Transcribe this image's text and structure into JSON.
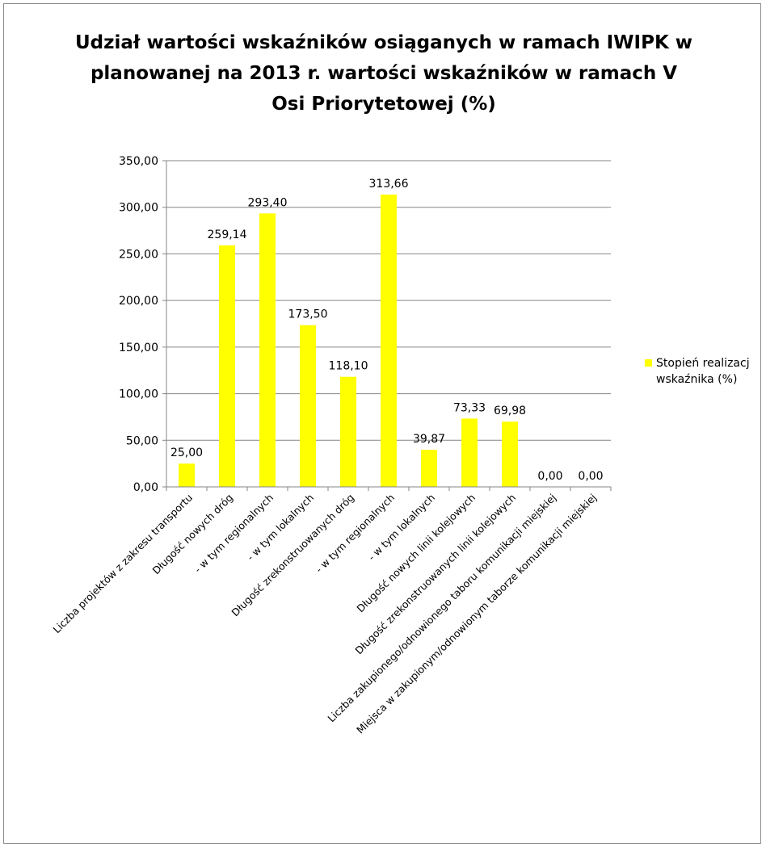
{
  "chart_data": {
    "type": "bar",
    "title": "Udział wartości wskaźników osiąganych w ramach IWIPK w planowanej na 2013 r. wartości wskaźników w ramach V Osi Priorytetowej (%)",
    "xlabel": "",
    "ylabel": "",
    "ylim": [
      0,
      350
    ],
    "y_ticks": [
      "0,00",
      "50,00",
      "100,00",
      "150,00",
      "200,00",
      "250,00",
      "300,00",
      "350,00"
    ],
    "grid": true,
    "legend_position": "right",
    "categories": [
      "Liczba projektów z zakresu  transportu",
      "Długość nowych dróg",
      "- w tym regionalnych",
      "- w tym lokalnych",
      "Długość zrekonstruowanych dróg",
      "- w tym regionalnych",
      "- w tym lokalnych",
      "Długość nowych linii kolejowych",
      "Długość zrekonstruowanych linii kolejowych",
      "Liczba zakupionego/odnowionego taboru komunikacji miejskiej",
      "Miejsca w zakupionym/odnowionym taborze komunikacji miejskiej"
    ],
    "series": [
      {
        "name": "Stopień realizacji wskaźnika (%)",
        "legend_display": "Stopień realizacj\nwskaźnika (%)",
        "color": "#ffff00",
        "values": [
          25.0,
          259.14,
          293.4,
          173.5,
          118.1,
          313.66,
          39.87,
          73.33,
          69.98,
          0.0,
          0.0
        ],
        "labels": [
          "25,00",
          "259,14",
          "293,40",
          "173,50",
          "118,10",
          "313,66",
          "39,87",
          "73,33",
          "69,98",
          "0,00",
          "0,00"
        ]
      }
    ]
  }
}
